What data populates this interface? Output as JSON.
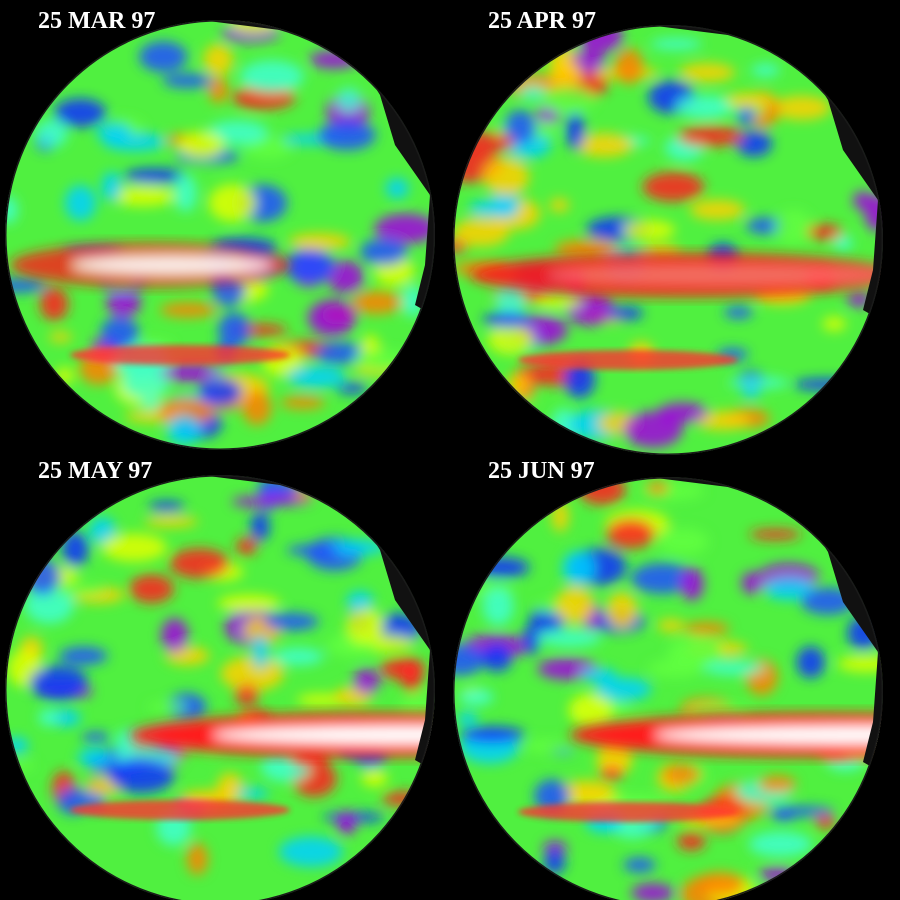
{
  "panels": [
    {
      "label": "25 MAR 97"
    },
    {
      "label": "25 APR 97"
    },
    {
      "label": "25 MAY 97"
    },
    {
      "label": "25 JUN 97"
    }
  ]
}
